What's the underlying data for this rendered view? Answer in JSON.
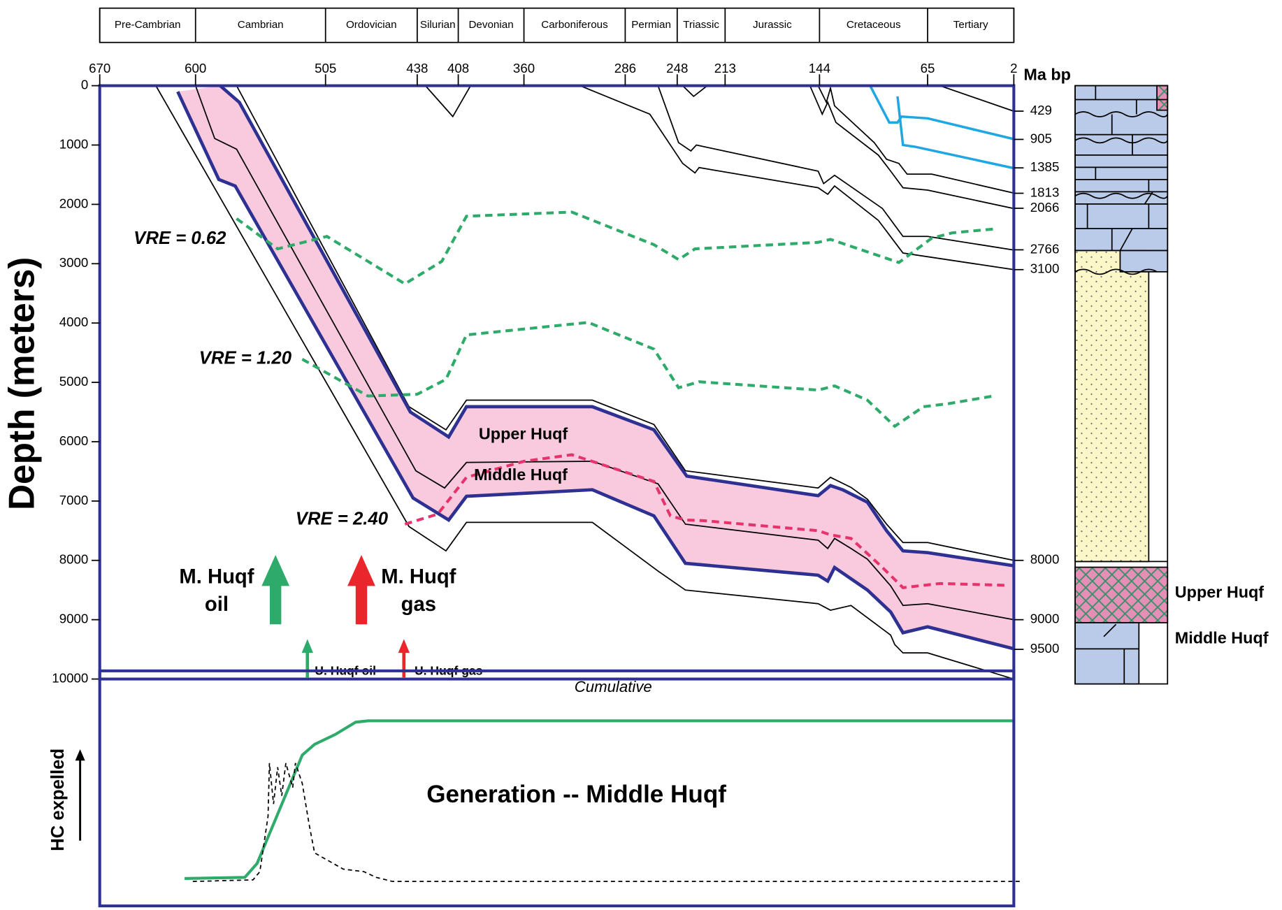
{
  "chart_data": [
    {
      "type": "line",
      "xlabel": "Ma bp",
      "ylabel": "Depth (meters)",
      "xlim": [
        670,
        2
      ],
      "ylim": [
        0,
        10000
      ],
      "y_inverted": true,
      "xticks": [
        670,
        600,
        505,
        438,
        408,
        360,
        286,
        248,
        213,
        144,
        65,
        2
      ],
      "yticks": [
        0,
        1000,
        2000,
        3000,
        4000,
        5000,
        6000,
        7000,
        8000,
        9000,
        10000
      ],
      "period_names": [
        "Pre-Cambrian",
        "Cambrian",
        "Ordovician",
        "Silurian",
        "Devonian",
        "Carboniferous",
        "Permian",
        "Triassic",
        "Jurassic",
        "Cretaceous",
        "Tertiary"
      ],
      "period_bounds": [
        670,
        600,
        505,
        438,
        408,
        360,
        286,
        248,
        213,
        144,
        65,
        2
      ],
      "right_labels": [
        429,
        905,
        1385,
        1813,
        2066,
        2766,
        3100,
        8000,
        9000,
        9500
      ],
      "annotations": [
        "VRE = 0.62",
        "VRE = 1.20",
        "VRE = 2.40",
        "Upper Huqf",
        "Middle Huqf",
        "M. Huqf",
        "oil",
        "M. Huqf",
        "gas",
        "U. Huqf oil",
        "U. Huqf gas"
      ],
      "column_labels": [
        "Upper Huqf",
        "Middle Huqf"
      ],
      "series": [
        {
          "color": "#000000",
          "width": 1.5,
          "x": [
            432,
            412,
            399
          ],
          "values": [
            0,
            520,
            0
          ]
        },
        {
          "color": "#000000",
          "width": 1.5,
          "x": [
            244,
            236,
            226
          ],
          "values": [
            0,
            180,
            0
          ]
        },
        {
          "color": "#000000",
          "width": 1.5,
          "x": [
            56,
            2
          ],
          "values": [
            0,
            430
          ]
        },
        {
          "color": "#1ea7e1",
          "width": 3,
          "x": [
            107,
            93,
            87,
            84,
            65,
            2
          ],
          "values": [
            0,
            620,
            620,
            520,
            550,
            900
          ]
        },
        {
          "color": "#1ea7e1",
          "width": 3,
          "x": [
            87,
            83,
            74,
            2
          ],
          "values": [
            180,
            1000,
            1030,
            1390
          ]
        },
        {
          "color": "#000000",
          "width": 1.5,
          "x": [
            145,
            139,
            136,
            133,
            104,
            95,
            86,
            80,
            62,
            2
          ],
          "values": [
            0,
            280,
            40,
            340,
            960,
            1240,
            1310,
            1490,
            1490,
            1810
          ]
        },
        {
          "color": "#000000",
          "width": 1.5,
          "x": [
            151,
            142,
            138,
            132,
            101,
            92,
            83,
            65,
            2
          ],
          "values": [
            0,
            480,
            280,
            620,
            1170,
            1440,
            1720,
            1760,
            2070
          ]
        },
        {
          "color": "#000000",
          "width": 1.5,
          "x": [
            262,
            247,
            238,
            234,
            145,
            141,
            133,
            98,
            83,
            65,
            2
          ],
          "values": [
            0,
            960,
            1100,
            1000,
            1440,
            1650,
            1510,
            2070,
            2540,
            2540,
            2770
          ]
        },
        {
          "color": "#000000",
          "width": 1.5,
          "x": [
            319,
            268,
            244,
            235,
            232,
            145,
            138,
            133,
            101,
            83,
            2
          ],
          "values": [
            0,
            480,
            1310,
            1470,
            1380,
            1720,
            1830,
            1690,
            2270,
            2820,
            3100
          ]
        },
        {
          "color": "#000000",
          "width": 1.5,
          "x": [
            570,
            444,
            417,
            402,
            310,
            265,
            242,
            145,
            136,
            121,
            109,
            95,
            83,
            65,
            2
          ],
          "values": [
            0,
            5410,
            5800,
            5300,
            5300,
            5710,
            6490,
            6780,
            6600,
            6770,
            6970,
            7390,
            7700,
            7700,
            8000
          ]
        },
        {
          "color": "#2e3192",
          "width": 4,
          "fill": "#f9c9de",
          "x": [
            582,
            568,
            443,
            415,
            402,
            310,
            265,
            241,
            145,
            136,
            127,
            109,
            95,
            83,
            65,
            2
          ],
          "values": [
            0,
            280,
            5500,
            5920,
            5410,
            5410,
            5800,
            6580,
            6910,
            6740,
            6810,
            7020,
            7500,
            7840,
            7870,
            8090
          ]
        },
        {
          "color": "#000000",
          "width": 1.5,
          "x": [
            600,
            586,
            570,
            439,
            418,
            402,
            310,
            262,
            242,
            145,
            138,
            133,
            121,
            109,
            92,
            83,
            65,
            2
          ],
          "values": [
            0,
            890,
            1070,
            6490,
            6780,
            6350,
            6330,
            6710,
            7390,
            7660,
            7800,
            7630,
            7800,
            7980,
            8430,
            8760,
            8730,
            9000
          ]
        },
        {
          "color": "#2e3192",
          "width": 4,
          "fill": "#f9c9de",
          "x": [
            613,
            583,
            571,
            441,
            415,
            402,
            310,
            265,
            242,
            145,
            138,
            133,
            109,
            92,
            83,
            65,
            2
          ],
          "values": [
            100,
            1580,
            1690,
            6950,
            7320,
            6920,
            6810,
            7250,
            8050,
            8250,
            8350,
            8120,
            8500,
            8870,
            9220,
            9120,
            9490
          ]
        },
        {
          "color": "#000000",
          "width": 1.5,
          "x": [
            629,
            444,
            417,
            402,
            310,
            262,
            242,
            145,
            136,
            121,
            92,
            89,
            83,
            65,
            2
          ],
          "values": [
            0,
            7430,
            7840,
            7360,
            7360,
            8180,
            8500,
            8730,
            8840,
            8760,
            9260,
            9420,
            9560,
            9560,
            10000
          ]
        },
        {
          "color": "#2eaa6a",
          "width": 3.5,
          "dash": true,
          "x": [
            570,
            540,
            504,
            447,
            420,
            402,
            325,
            265,
            247,
            235,
            145,
            136,
            86,
            62,
            47,
            14
          ],
          "values": [
            2240,
            2750,
            2540,
            3340,
            2960,
            2200,
            2130,
            2680,
            2930,
            2750,
            2640,
            2590,
            2980,
            2570,
            2480,
            2410
          ]
        },
        {
          "color": "#2eaa6a",
          "width": 3.5,
          "dash": true,
          "x": [
            522,
            474,
            438,
            417,
            402,
            313,
            265,
            247,
            232,
            145,
            133,
            109,
            89,
            68,
            50,
            17
          ],
          "values": [
            4610,
            5230,
            5200,
            4950,
            4200,
            3990,
            4440,
            5090,
            4990,
            5130,
            5060,
            5300,
            5740,
            5410,
            5360,
            5230
          ]
        },
        {
          "color": "#e6336b",
          "width": 3.5,
          "dash": true,
          "x": [
            447,
            423,
            402,
            360,
            325,
            265,
            253,
            242,
            229,
            145,
            136,
            121,
            98,
            83,
            56,
            8
          ],
          "values": [
            7390,
            7220,
            6600,
            6330,
            6220,
            6670,
            7250,
            7320,
            7330,
            7500,
            7570,
            7630,
            8120,
            8460,
            8390,
            8420
          ]
        }
      ]
    },
    {
      "type": "line",
      "ylabel": "HC expelled",
      "xlim": [
        670,
        2
      ],
      "ylim": [
        0,
        100
      ],
      "annotations": [
        "Cumulative",
        "Generation -- Middle Huqf"
      ],
      "series": [
        {
          "color": "#2eaa6a",
          "width": 3.5,
          "x": [
            608,
            564,
            555,
            522,
            513,
            498,
            483,
            474,
            2
          ],
          "values": [
            12,
            12.5,
            18.6,
            66,
            70.7,
            75,
            80.4,
            81,
            81
          ]
        },
        {
          "color": "#000000",
          "width": 1.5,
          "dash": true,
          "x": [
            602,
            558,
            553,
            547,
            546,
            543,
            540,
            537,
            534,
            529,
            527,
            522,
            517,
            513,
            492,
            477,
            468,
            456,
            -4
          ],
          "values": [
            10.7,
            11.4,
            15,
            39.3,
            62.5,
            44.6,
            60.7,
            48.2,
            62.5,
            51.8,
            62.5,
            53.6,
            35.7,
            23.2,
            16.1,
            15,
            12.5,
            10.7,
            10.7
          ]
        }
      ]
    }
  ]
}
